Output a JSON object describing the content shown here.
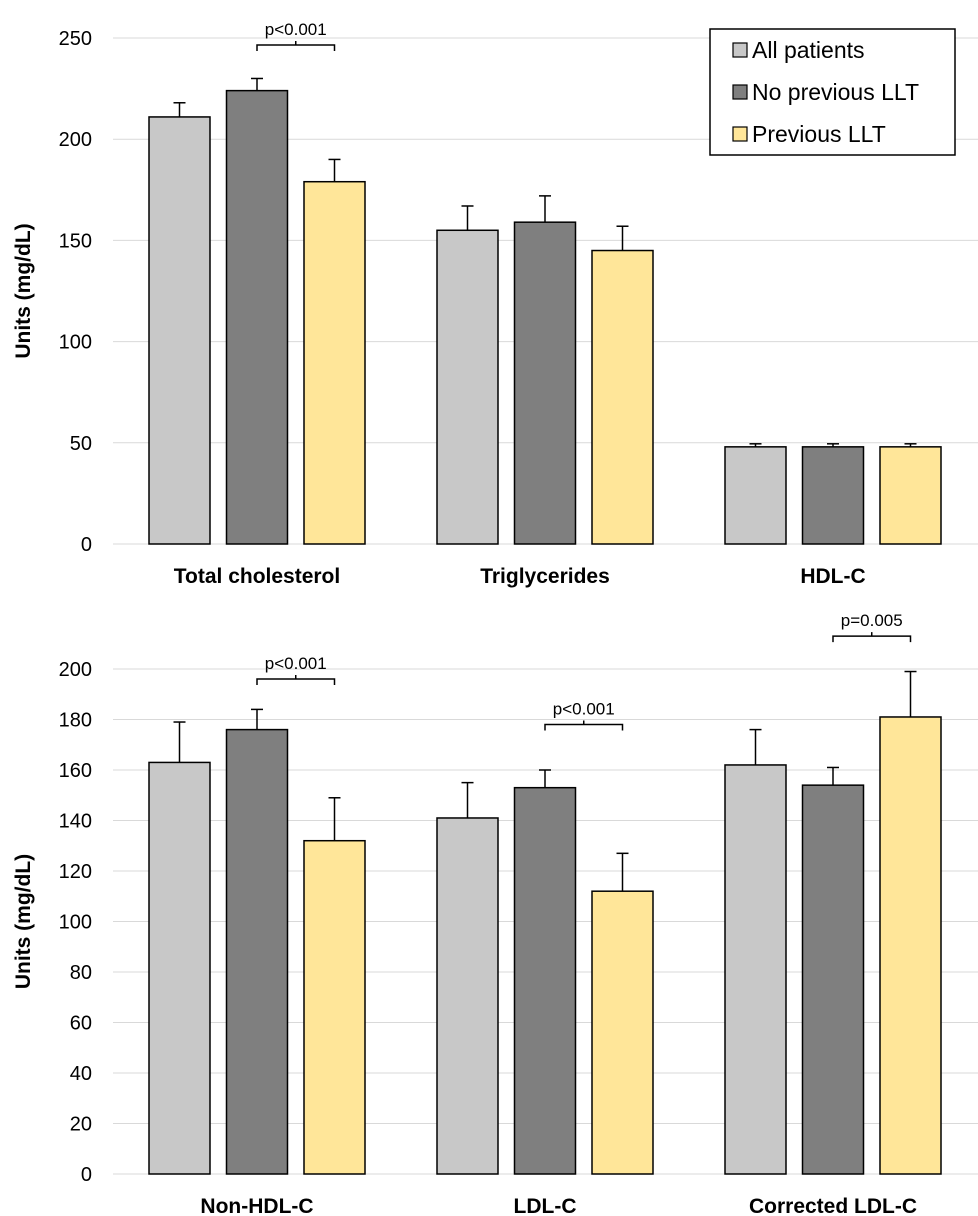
{
  "colors": {
    "all_patients": "#C8C8C8",
    "no_previous_llt": "#7F7F7F",
    "previous_llt": "#FFE699",
    "grid": "#D9D9D9",
    "stroke": "#000000"
  },
  "legend": {
    "items": [
      {
        "label": "All patients",
        "color_key": "all_patients"
      },
      {
        "label": "No previous LLT",
        "color_key": "no_previous_llt"
      },
      {
        "label": "Previous LLT",
        "color_key": "previous_llt"
      }
    ]
  },
  "chart_data": [
    {
      "type": "bar",
      "ylabel": "Units (mg/dL)",
      "ylim": [
        0,
        250
      ],
      "yticks": [
        0,
        50,
        100,
        150,
        200,
        250
      ],
      "categories": [
        "Total cholesterol",
        "Triglycerides",
        "HDL-C"
      ],
      "series": [
        {
          "name": "All patients",
          "values": [
            211,
            155,
            48
          ],
          "errors": [
            7,
            12,
            1.5
          ]
        },
        {
          "name": "No previous LLT",
          "values": [
            224,
            159,
            48
          ],
          "errors": [
            6,
            13,
            1.5
          ]
        },
        {
          "name": "Previous LLT",
          "values": [
            179,
            145,
            48
          ],
          "errors": [
            11,
            12,
            1.5
          ]
        }
      ],
      "annotations": [
        {
          "text": "p<0.001",
          "category_index": 0,
          "from_series": 1,
          "to_series": 2,
          "y": 249
        }
      ]
    },
    {
      "type": "bar",
      "ylabel": "Units (mg/dL)",
      "ylim": [
        0,
        200
      ],
      "yticks": [
        0,
        20,
        40,
        60,
        80,
        100,
        120,
        140,
        160,
        180,
        200
      ],
      "categories": [
        "Non-HDL-C",
        "LDL-C",
        "Corrected LDL-C"
      ],
      "series": [
        {
          "name": "All patients",
          "values": [
            163,
            141,
            162
          ],
          "errors": [
            16,
            14,
            14
          ]
        },
        {
          "name": "No previous LLT",
          "values": [
            176,
            153,
            154
          ],
          "errors": [
            8,
            7,
            7
          ]
        },
        {
          "name": "Previous LLT",
          "values": [
            132,
            112,
            181
          ],
          "errors": [
            17,
            15,
            18
          ]
        }
      ],
      "annotations": [
        {
          "text": "p<0.001",
          "category_index": 0,
          "from_series": 1,
          "to_series": 2,
          "y": 198
        },
        {
          "text": "p<0.001",
          "category_index": 1,
          "from_series": 1,
          "to_series": 2,
          "y": 180
        },
        {
          "text": "p=0.005",
          "category_index": 2,
          "from_series": 1,
          "to_series": 2,
          "y": 215
        }
      ]
    }
  ]
}
